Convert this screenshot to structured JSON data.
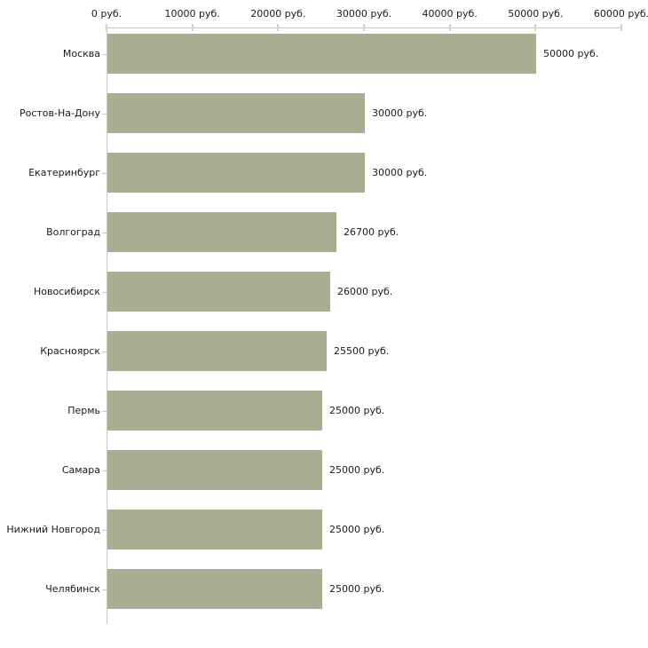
{
  "chart_data": {
    "type": "bar",
    "orientation": "horizontal",
    "title": "",
    "categories": [
      "Москва",
      "Ростов-На-Дону",
      "Екатеринбург",
      "Волгоград",
      "Новосибирск",
      "Красноярск",
      "Пермь",
      "Самара",
      "Нижний Новгород",
      "Челябинск"
    ],
    "values": [
      50000,
      30000,
      30000,
      26700,
      26000,
      25500,
      25000,
      25000,
      25000,
      25000
    ],
    "value_labels": [
      "50000 руб.",
      "30000 руб.",
      "30000 руб.",
      "26700 руб.",
      "26000 руб.",
      "25500 руб.",
      "25000 руб.",
      "25000 руб.",
      "25000 руб.",
      "25000 руб."
    ],
    "xlim": [
      0,
      60000
    ],
    "x_ticks": [
      0,
      10000,
      20000,
      30000,
      40000,
      50000,
      60000
    ],
    "x_tick_labels": [
      "0 руб.",
      "10000 руб.",
      "20000 руб.",
      "30000 руб.",
      "40000 руб.",
      "50000 руб.",
      "60000 руб."
    ],
    "unit": "руб.",
    "grid": false,
    "legend": "none",
    "axis_position": "top",
    "colors": {
      "bar": "#a9ae93",
      "x_axis_line": "#c6c6c6",
      "y_axis_line": "#cbcbcb",
      "x_tick": "#d6d6ad",
      "category_tick": "#c9ccb6",
      "text": "#1a1a1a",
      "background": "#ffffff"
    }
  }
}
